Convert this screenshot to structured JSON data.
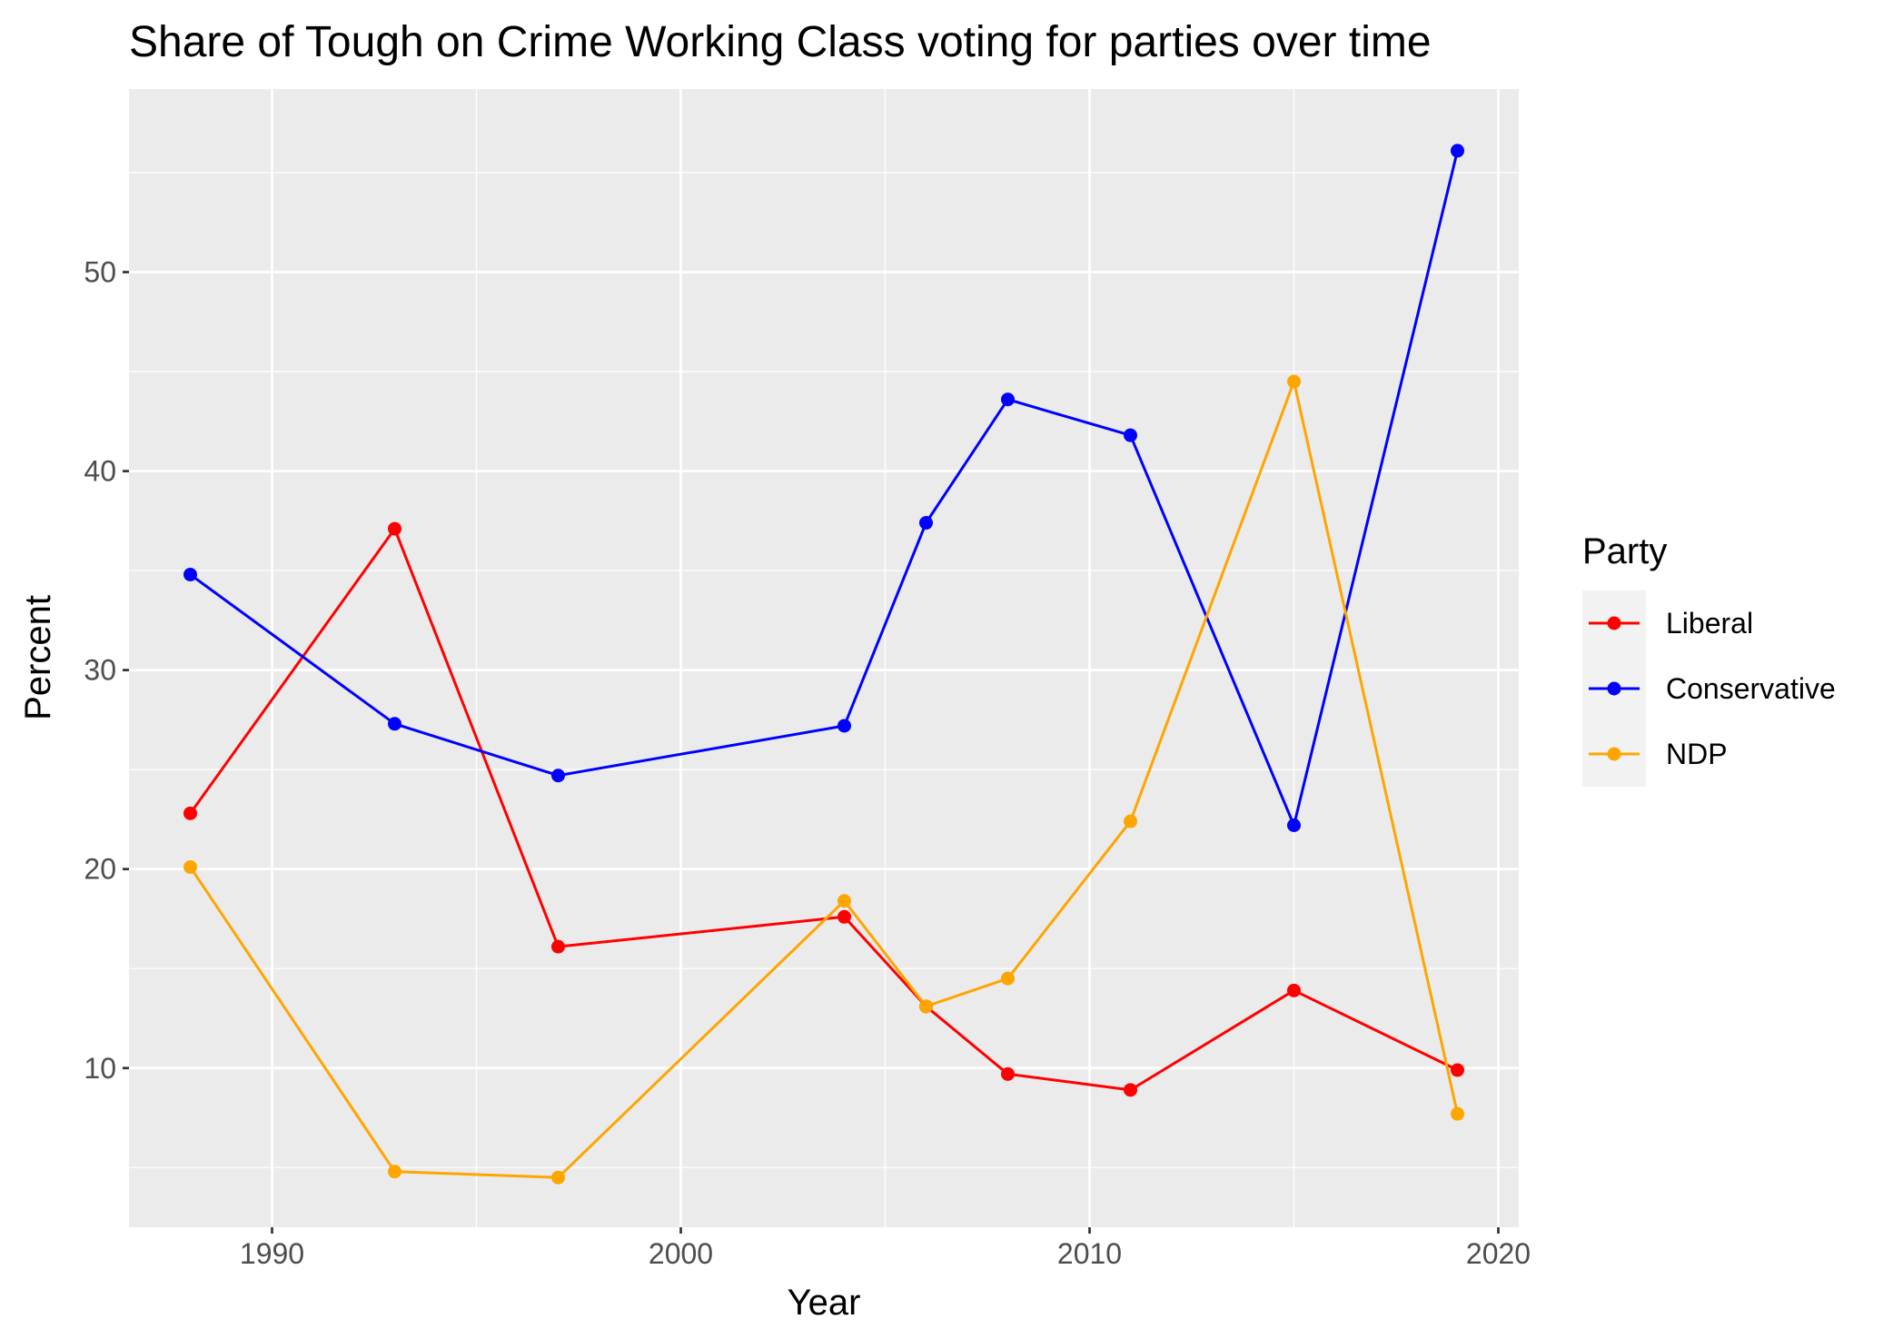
{
  "chart_data": {
    "type": "line",
    "title": "Share of Tough on Crime Working Class voting for parties over time",
    "xlabel": "Year",
    "ylabel": "Percent",
    "xlim": [
      1986.5,
      2020.5
    ],
    "ylim": [
      2.0,
      59.2
    ],
    "x_ticks": [
      1990,
      2000,
      2010,
      2020
    ],
    "y_ticks": [
      10,
      20,
      30,
      40,
      50
    ],
    "grid": true,
    "legend": {
      "title": "Party",
      "position": "right"
    },
    "series": [
      {
        "name": "Liberal",
        "color": "#ff0000",
        "x": [
          1988,
          1993,
          1997,
          2004,
          2006,
          2008,
          2011,
          2015,
          2019
        ],
        "y": [
          22.8,
          37.1,
          16.1,
          17.6,
          13.1,
          9.7,
          8.9,
          13.9,
          9.9
        ]
      },
      {
        "name": "Conservative",
        "color": "#0000ff",
        "x": [
          1988,
          1993,
          1997,
          2004,
          2006,
          2008,
          2011,
          2015,
          2019
        ],
        "y": [
          34.8,
          27.3,
          24.7,
          27.2,
          37.4,
          43.6,
          41.8,
          22.2,
          56.1
        ]
      },
      {
        "name": "NDP",
        "color": "#ffa500",
        "x": [
          1988,
          1993,
          1997,
          2004,
          2006,
          2008,
          2011,
          2015,
          2019
        ],
        "y": [
          20.1,
          4.8,
          4.5,
          18.4,
          13.1,
          14.5,
          22.4,
          44.5,
          7.7
        ]
      }
    ]
  }
}
